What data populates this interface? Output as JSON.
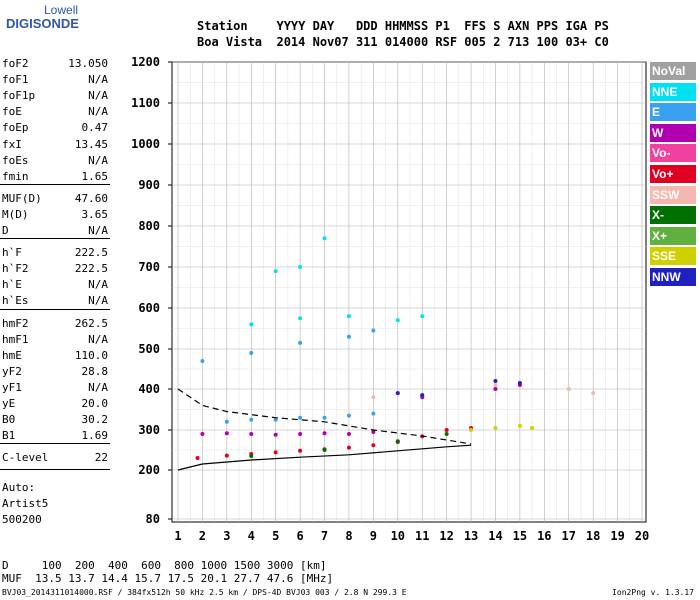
{
  "logo": {
    "top": "Lowell",
    "bottom": "DIGISONDE"
  },
  "header": {
    "row1": "Station    YYYY DAY   DDD HHMMSS P1  FFS S AXN PPS IGA PS",
    "row2": "Boa Vista  2014 Nov07 311 014000 RSF 005 2 713 100 03+ C0"
  },
  "params": [
    {
      "k": "foF2",
      "v": "13.050"
    },
    {
      "k": "foF1",
      "v": "N/A"
    },
    {
      "k": "foF1p",
      "v": "N/A"
    },
    {
      "k": "foE",
      "v": "N/A"
    },
    {
      "k": "foEp",
      "v": "0.47"
    },
    {
      "k": "fxI",
      "v": "13.45"
    },
    {
      "k": "foEs",
      "v": "N/A"
    },
    {
      "k": "fmin",
      "v": "1.65"
    },
    {
      "k": "MUF(D)",
      "v": "47.60"
    },
    {
      "k": "M(D)",
      "v": "3.65"
    },
    {
      "k": "D",
      "v": "N/A"
    },
    {
      "k": "h`F",
      "v": "222.5"
    },
    {
      "k": "h`F2",
      "v": "222.5"
    },
    {
      "k": "h`E",
      "v": "N/A"
    },
    {
      "k": "h`Es",
      "v": "N/A"
    },
    {
      "k": "hmF2",
      "v": "262.5"
    },
    {
      "k": "hmF1",
      "v": "N/A"
    },
    {
      "k": "hmE",
      "v": "110.0"
    },
    {
      "k": "yF2",
      "v": "28.8"
    },
    {
      "k": "yF1",
      "v": "N/A"
    },
    {
      "k": "yE",
      "v": "20.0"
    },
    {
      "k": "B0",
      "v": "30.2"
    },
    {
      "k": "B1",
      "v": "1.69"
    },
    {
      "k": "C-level",
      "v": "22"
    }
  ],
  "auto": {
    "label": "Auto:",
    "artist": "Artist5",
    "code": "500200"
  },
  "legend": [
    {
      "label": "NoVal",
      "color": "#a0a0a0"
    },
    {
      "label": "NNE",
      "color": "#00e0f0"
    },
    {
      "label": "E",
      "color": "#3aa0f0"
    },
    {
      "label": "W",
      "color": "#b000b0"
    },
    {
      "label": "Vo-",
      "color": "#f040a0"
    },
    {
      "label": "Vo+",
      "color": "#e00020"
    },
    {
      "label": "SSW",
      "color": "#f5b8b0"
    },
    {
      "label": "X-",
      "color": "#007000"
    },
    {
      "label": "X+",
      "color": "#60b040"
    },
    {
      "label": "SSE",
      "color": "#d0d000"
    },
    {
      "label": "NNW",
      "color": "#2020c0"
    }
  ],
  "footer": {
    "d_row": "D     100  200  400  600  800 1000 1500 3000 [km]",
    "muf_row": "MUF  13.5 13.7 14.4 15.7 17.5 20.1 27.7 47.6 [MHz]",
    "file_line": "BVJ03_2014311014000.RSF / 384fx512h 50 kHz 2.5 km / DPS-4D BVJ03 003 / 2.8 N 299.3 E",
    "version": "Ion2Png v. 1.3.17"
  },
  "chart_data": {
    "type": "scatter",
    "xlim": [
      1,
      20
    ],
    "x_ticks": [
      1,
      2,
      3,
      4,
      5,
      6,
      7,
      8,
      9,
      10,
      11,
      12,
      13,
      14,
      15,
      16,
      17,
      18,
      19,
      20
    ],
    "ylim": [
      80,
      1200
    ],
    "y_ticks": [
      80,
      200,
      300,
      400,
      500,
      600,
      700,
      800,
      900,
      1000,
      1100,
      1200
    ],
    "grid": true,
    "series": [
      {
        "name": "F-trace (Vo+/Vo-)",
        "color": "#e00020",
        "points": [
          [
            1.8,
            230
          ],
          [
            3,
            236
          ],
          [
            4,
            240
          ],
          [
            5,
            244
          ],
          [
            6,
            248
          ],
          [
            7,
            252
          ],
          [
            8,
            256
          ],
          [
            9,
            262
          ],
          [
            10,
            270
          ],
          [
            11,
            284
          ],
          [
            12,
            300
          ],
          [
            13,
            305
          ]
        ]
      },
      {
        "name": "W",
        "color": "#b000b0",
        "points": [
          [
            2,
            290
          ],
          [
            3,
            292
          ],
          [
            4,
            290
          ],
          [
            5,
            288
          ],
          [
            6,
            290
          ],
          [
            7,
            292
          ],
          [
            8,
            290
          ],
          [
            9,
            295
          ],
          [
            11,
            380
          ],
          [
            14,
            400
          ],
          [
            15,
            410
          ]
        ]
      },
      {
        "name": "E",
        "color": "#3aa0f0",
        "points": [
          [
            3,
            320
          ],
          [
            4,
            325
          ],
          [
            5,
            325
          ],
          [
            6,
            330
          ],
          [
            7,
            330
          ],
          [
            8,
            335
          ],
          [
            9,
            340
          ],
          [
            2,
            470
          ],
          [
            4,
            490
          ],
          [
            6,
            515
          ],
          [
            8,
            530
          ],
          [
            9,
            545
          ]
        ]
      },
      {
        "name": "NNE",
        "color": "#00e0f0",
        "points": [
          [
            4,
            560
          ],
          [
            6,
            575
          ],
          [
            8,
            580
          ],
          [
            10,
            570
          ],
          [
            11,
            580
          ],
          [
            5,
            690
          ],
          [
            6,
            700
          ],
          [
            7,
            770
          ]
        ]
      },
      {
        "name": "SSE",
        "color": "#d0d000",
        "points": [
          [
            13,
            300
          ],
          [
            14,
            305
          ],
          [
            15,
            310
          ],
          [
            15.5,
            305
          ]
        ]
      },
      {
        "name": "SSW",
        "color": "#f5b8b0",
        "points": [
          [
            9,
            380
          ],
          [
            10,
            390
          ],
          [
            11,
            385
          ],
          [
            14,
            410
          ],
          [
            17,
            400
          ],
          [
            18,
            390
          ]
        ]
      },
      {
        "name": "X-",
        "color": "#007000",
        "points": [
          [
            4,
            235
          ],
          [
            7,
            250
          ],
          [
            10,
            272
          ],
          [
            12,
            290
          ]
        ]
      },
      {
        "name": "NNW",
        "color": "#2020c0",
        "points": [
          [
            10,
            390
          ],
          [
            11,
            385
          ],
          [
            14,
            420
          ],
          [
            15,
            415
          ]
        ]
      }
    ],
    "profile_curves": [
      {
        "name": "profile",
        "points": [
          [
            1,
            200
          ],
          [
            2,
            215
          ],
          [
            4,
            225
          ],
          [
            6,
            232
          ],
          [
            8,
            238
          ],
          [
            10,
            248
          ],
          [
            12,
            258
          ],
          [
            13,
            262
          ]
        ]
      },
      {
        "name": "profile-dashed",
        "points": [
          [
            1,
            400
          ],
          [
            2,
            360
          ],
          [
            3,
            345
          ],
          [
            5,
            330
          ],
          [
            7,
            320
          ],
          [
            9,
            300
          ],
          [
            11,
            285
          ],
          [
            13,
            265
          ]
        ]
      }
    ]
  }
}
